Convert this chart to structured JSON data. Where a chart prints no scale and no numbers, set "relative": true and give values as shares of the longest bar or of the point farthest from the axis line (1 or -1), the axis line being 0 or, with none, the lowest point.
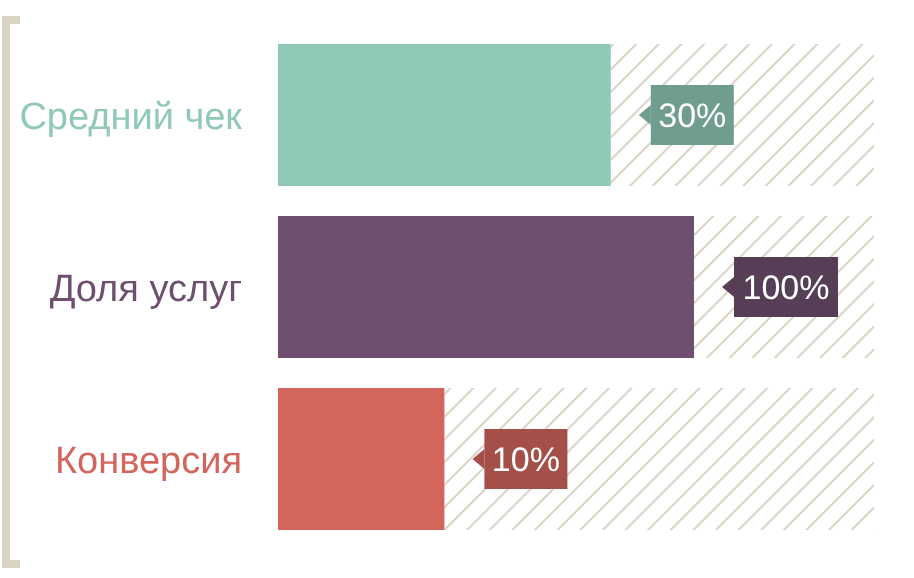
{
  "chart_data": {
    "type": "bar",
    "orientation": "horizontal",
    "relative": true,
    "categories": [
      "Средний чек",
      "Доля услуг",
      "Конверсия"
    ],
    "values": [
      0.8,
      1,
      0.4
    ],
    "colors": [
      "#91c9b9",
      "#6e4f70",
      "#d3655d"
    ],
    "annotations": [
      "30%",
      "100%",
      "10%"
    ]
  }
}
